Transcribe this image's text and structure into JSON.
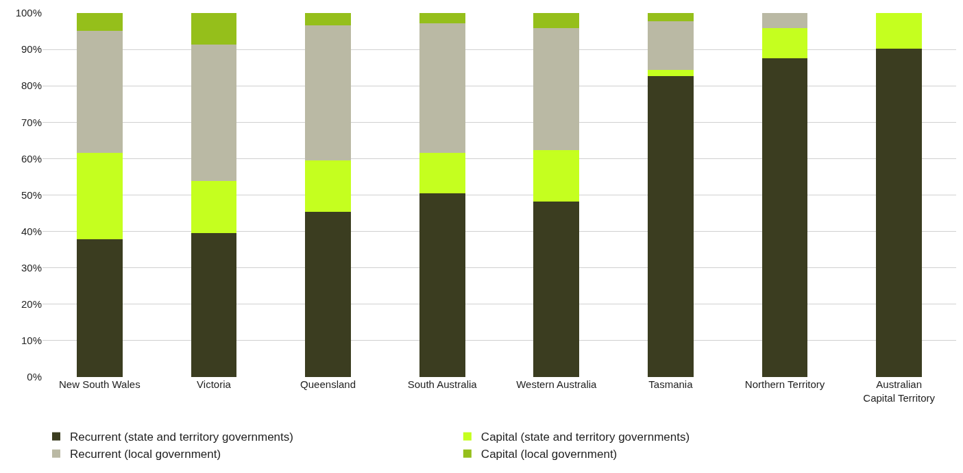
{
  "chart_data": {
    "type": "bar",
    "stacked": true,
    "categories": [
      "New South Wales",
      "Victoria",
      "Queensland",
      "South Australia",
      "Western Australia",
      "Tasmania",
      "Northern Territory",
      "Australian Capital Territory"
    ],
    "series": [
      {
        "name": "Recurrent (state and territory governments)",
        "color": "#3b3d20",
        "values": [
          37.8,
          39.5,
          45.3,
          50.4,
          48.3,
          82.6,
          87.5,
          90.3
        ]
      },
      {
        "name": "Capital (state and territory governments)",
        "color": "#c5ff1f",
        "values": [
          23.8,
          14.4,
          14.3,
          11.2,
          14.1,
          1.7,
          8.4,
          9.7
        ]
      },
      {
        "name": "Recurrent (local government)",
        "color": "#bab9a4",
        "values": [
          33.5,
          37.5,
          37.0,
          35.6,
          33.5,
          13.5,
          4.1,
          0
        ]
      },
      {
        "name": "Capital (local government)",
        "color": "#95bf1b",
        "values": [
          4.9,
          8.6,
          3.4,
          2.8,
          4.1,
          2.2,
          0,
          0
        ]
      }
    ],
    "ylim": [
      0,
      100
    ],
    "yticks": [
      {
        "value": 0,
        "label": "0%"
      },
      {
        "value": 10,
        "label": "10%"
      },
      {
        "value": 20,
        "label": "20%"
      },
      {
        "value": 30,
        "label": "30%"
      },
      {
        "value": 40,
        "label": "40%"
      },
      {
        "value": 50,
        "label": "50%"
      },
      {
        "value": 60,
        "label": "60%"
      },
      {
        "value": 70,
        "label": "70%"
      },
      {
        "value": 80,
        "label": "80%"
      },
      {
        "value": 90,
        "label": "90%"
      },
      {
        "value": 100,
        "label": "100%"
      }
    ],
    "grid": "y",
    "legend": "bottom"
  }
}
